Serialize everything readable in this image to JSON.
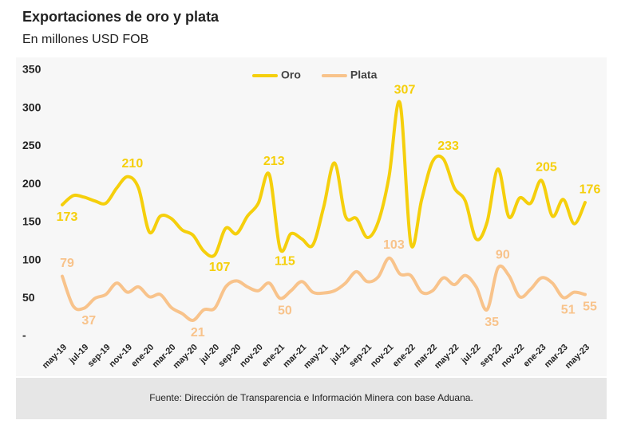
{
  "title": "Exportaciones de oro y plata",
  "subtitle": "En millones USD FOB",
  "source": "Fuente: Dirección de Transparencia e Información Minera con base Aduana.",
  "chart_data": {
    "type": "line",
    "categories": [
      "may-19",
      null,
      "jul-19",
      null,
      "sep-19",
      null,
      "nov-19",
      null,
      "ene-20",
      null,
      "mar-20",
      null,
      "may-20",
      null,
      "jul-20",
      null,
      "sep-20",
      null,
      "nov-20",
      null,
      "ene-21",
      null,
      "mar-21",
      null,
      "may-21",
      null,
      "jul-21",
      null,
      "sep-21",
      null,
      "nov-21",
      null,
      "ene-22",
      null,
      "mar-22",
      null,
      "may-22",
      null,
      "jul-22",
      null,
      "sep-22",
      null,
      "nov-22",
      null,
      "ene-23",
      null,
      "mar-23",
      null,
      "may-23"
    ],
    "series": [
      {
        "name": "Oro",
        "color": "#f5cf0c",
        "values": [
          173,
          185,
          183,
          178,
          175,
          195,
          210,
          195,
          137,
          158,
          155,
          140,
          133,
          112,
          107,
          142,
          135,
          158,
          175,
          213,
          115,
          135,
          128,
          120,
          170,
          228,
          158,
          155,
          130,
          150,
          210,
          307,
          122,
          180,
          230,
          233,
          195,
          178,
          128,
          150,
          220,
          157,
          182,
          175,
          205,
          158,
          180,
          148,
          176
        ],
        "value_labels": [
          "173",
          null,
          null,
          null,
          null,
          null,
          "210",
          null,
          null,
          null,
          null,
          null,
          null,
          null,
          "107",
          null,
          null,
          null,
          null,
          "213",
          "115",
          null,
          null,
          null,
          null,
          null,
          null,
          null,
          null,
          null,
          null,
          "307",
          null,
          null,
          null,
          "233",
          null,
          null,
          null,
          null,
          null,
          null,
          null,
          null,
          "205",
          null,
          null,
          null,
          "176"
        ]
      },
      {
        "name": "Plata",
        "color": "#f8c38b",
        "values": [
          79,
          40,
          37,
          50,
          55,
          70,
          58,
          65,
          52,
          55,
          38,
          30,
          21,
          35,
          37,
          65,
          73,
          65,
          60,
          70,
          50,
          60,
          72,
          58,
          57,
          60,
          70,
          85,
          72,
          78,
          103,
          82,
          80,
          58,
          60,
          77,
          68,
          80,
          65,
          35,
          90,
          80,
          52,
          62,
          77,
          70,
          51,
          58,
          55
        ],
        "value_labels": [
          "79",
          null,
          "37",
          null,
          null,
          null,
          null,
          null,
          null,
          null,
          null,
          null,
          "21",
          null,
          null,
          null,
          null,
          null,
          null,
          null,
          "50",
          null,
          null,
          null,
          null,
          null,
          null,
          null,
          null,
          null,
          "103",
          null,
          null,
          null,
          null,
          null,
          null,
          null,
          null,
          "35",
          "90",
          null,
          null,
          null,
          null,
          null,
          "51",
          null,
          "55"
        ]
      }
    ],
    "ylim": [
      0,
      350
    ],
    "yticks": [
      {
        "value": 0,
        "label": "-"
      },
      50,
      100,
      150,
      200,
      250,
      300,
      350
    ],
    "legend": "top"
  }
}
